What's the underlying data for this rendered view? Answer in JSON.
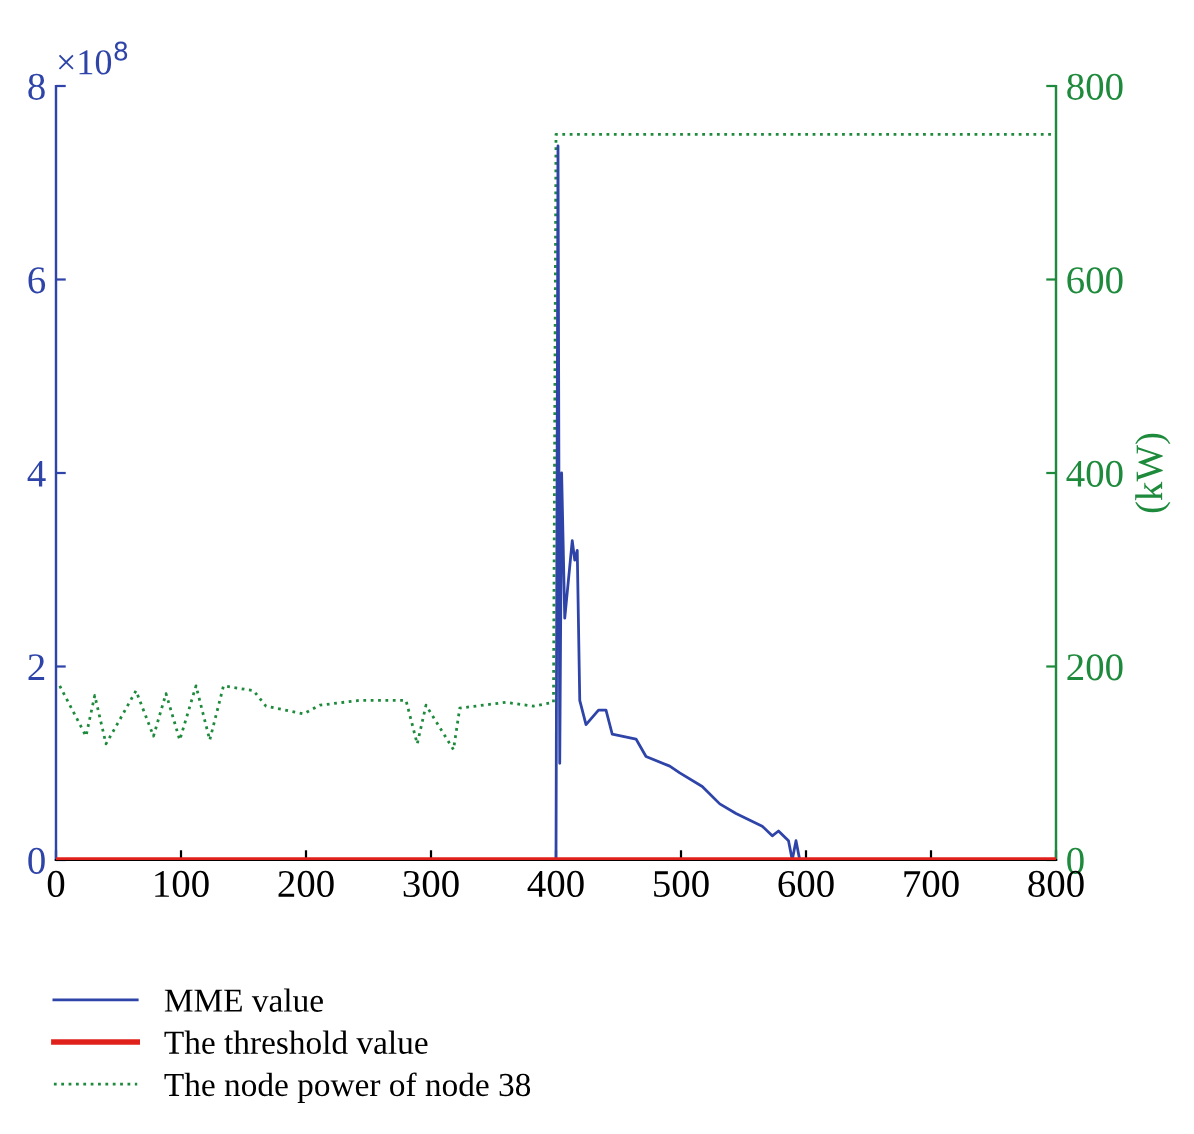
{
  "chart_data": {
    "type": "line",
    "y2label": "(kW)",
    "annotations": [
      "×10$^{8}$"
    ],
    "xlim": [
      0,
      800
    ],
    "xticks": [
      0,
      100,
      200,
      300,
      400,
      500,
      600,
      700,
      800
    ],
    "ylim": [
      0,
      8
    ],
    "yticks": [
      0,
      2,
      4,
      6,
      8
    ],
    "y2lim": [
      0,
      800
    ],
    "y2ticks": [
      0,
      200,
      400,
      600,
      800
    ],
    "legend": "bottom",
    "grid": false,
    "marker": "none",
    "series": [
      {
        "name": "MME value",
        "color": "#2e44a8",
        "line_style": "solid",
        "x": [
          0,
          400,
          401.6,
          403,
          404.5,
          407,
          413,
          415,
          417,
          419,
          424,
          434,
          440,
          445,
          464,
          472,
          491,
          499,
          517,
          531,
          544,
          565,
          573,
          578,
          586,
          589,
          592,
          595,
          800
        ],
        "values": [
          0,
          0,
          7.38,
          1.0,
          4.0,
          2.5,
          3.3,
          3.1,
          3.2,
          1.65,
          1.4,
          1.55,
          1.55,
          1.3,
          1.25,
          1.07,
          0.97,
          0.9,
          0.76,
          0.58,
          0.48,
          0.35,
          0.25,
          0.3,
          0.2,
          0,
          0.2,
          0,
          0
        ]
      },
      {
        "name": "The threshold value",
        "color": "#e0201b",
        "line_style": "solid",
        "x": [
          0,
          800
        ],
        "values": [
          0,
          0
        ]
      },
      {
        "name": "The node power of node 38",
        "color": "#1e8a3c",
        "line_style": "dotted",
        "axis": "y2",
        "x": [
          3,
          24,
          31,
          40,
          51,
          64,
          78,
          88,
          99,
          112,
          123,
          134,
          158,
          168,
          198,
          211,
          243,
          280,
          289,
          296,
          318,
          323,
          360,
          382,
          398,
          400,
          800
        ],
        "values": [
          180,
          128,
          170,
          120,
          145,
          175,
          128,
          172,
          124,
          180,
          124,
          180,
          175,
          159,
          151,
          160,
          165,
          165,
          120,
          160,
          114,
          157,
          163,
          159,
          163,
          750,
          750
        ]
      }
    ]
  }
}
